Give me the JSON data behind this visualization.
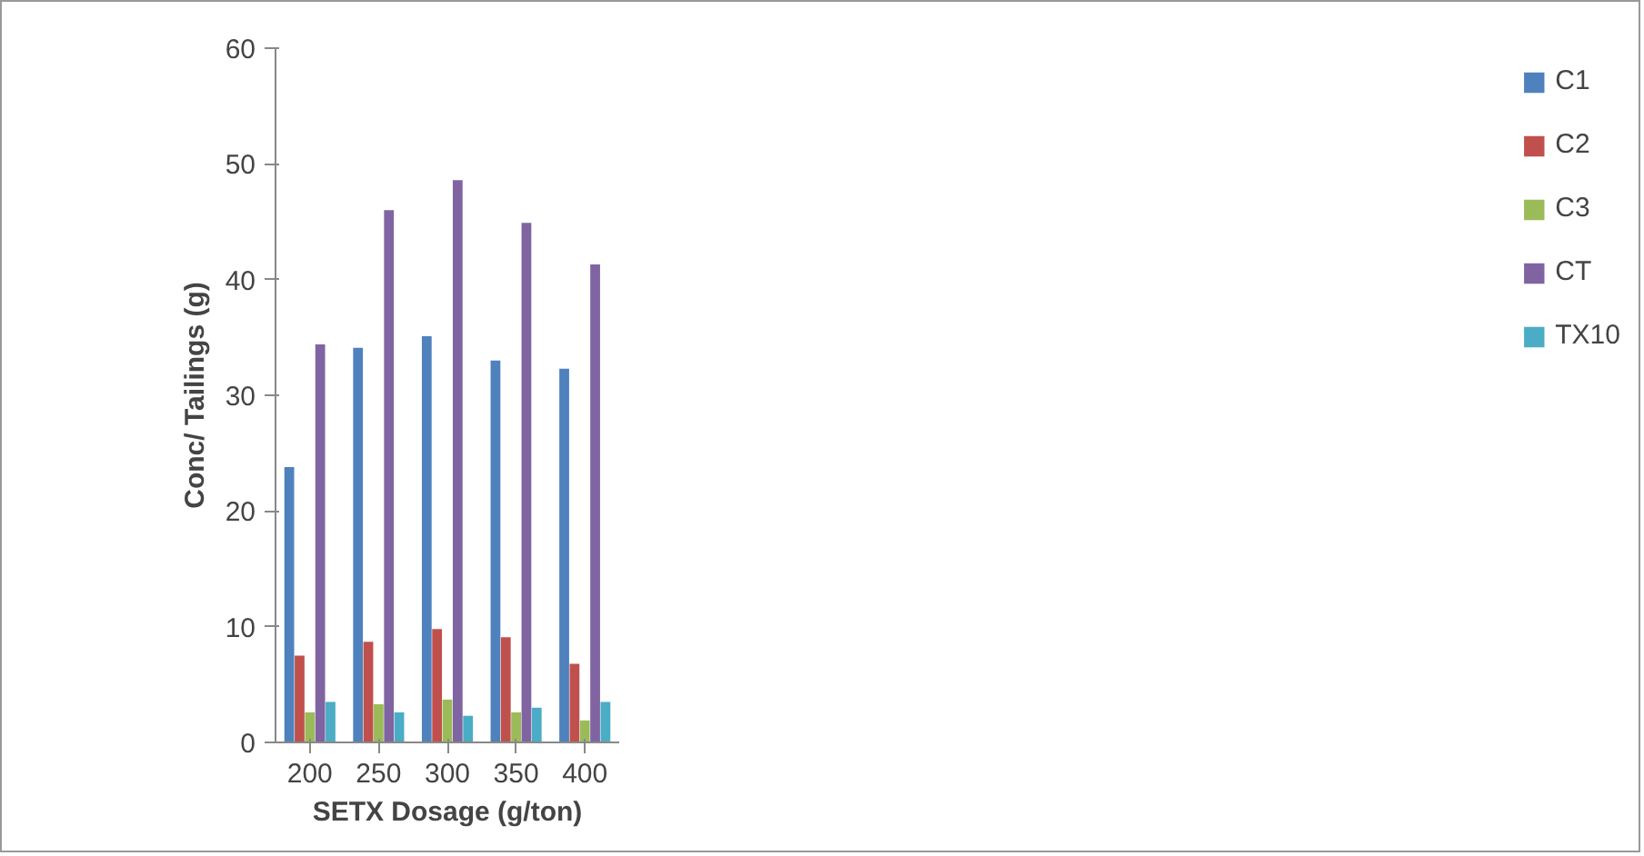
{
  "chart_data": {
    "type": "bar",
    "xlabel": "SETX Dosage (g/ton)",
    "ylabel": "Conc/ Tailings (g)",
    "categories": [
      "200",
      "250",
      "300",
      "350",
      "400"
    ],
    "series": [
      {
        "name": "C1",
        "color": "#4f81bd",
        "values": [
          23.8,
          34.1,
          35.1,
          33.0,
          32.3
        ]
      },
      {
        "name": "C2",
        "color": "#c0504d",
        "values": [
          7.5,
          8.7,
          9.8,
          9.1,
          6.8
        ]
      },
      {
        "name": "C3",
        "color": "#9bbb59",
        "values": [
          2.6,
          3.3,
          3.7,
          2.6,
          1.9
        ]
      },
      {
        "name": "CT",
        "color": "#8064a2",
        "values": [
          34.4,
          46.0,
          48.6,
          44.9,
          41.3
        ]
      },
      {
        "name": "TX10",
        "color": "#4bacc6",
        "values": [
          3.5,
          2.6,
          2.3,
          3.0,
          3.5
        ]
      }
    ],
    "ylim": [
      0,
      60
    ],
    "yticks": [
      0,
      10,
      20,
      30,
      40,
      50,
      60
    ],
    "grid": false,
    "legend": "right"
  }
}
